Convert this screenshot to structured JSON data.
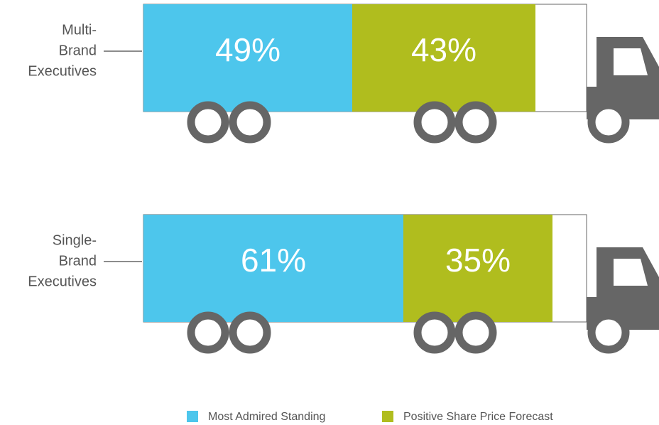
{
  "chart_data": {
    "type": "bar",
    "orientation": "horizontal",
    "stacked": true,
    "categories": [
      [
        "Multi-",
        "Brand",
        "Executives"
      ],
      [
        "Single-",
        "Brand",
        "Executives"
      ]
    ],
    "series": [
      {
        "name": "Most Admired Standing",
        "color": "#4dc6ec",
        "values": [
          49,
          61
        ],
        "value_labels": [
          "49%",
          "61%"
        ]
      },
      {
        "name": "Positive Share Price Forecast",
        "color": "#b0bd1e",
        "values": [
          43,
          35
        ],
        "value_labels": [
          "43%",
          "35%"
        ]
      }
    ],
    "xlim": [
      0,
      100
    ]
  }
}
